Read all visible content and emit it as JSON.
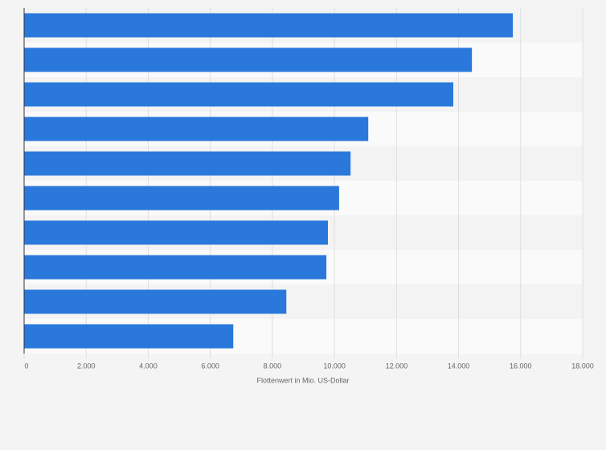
{
  "chart_data": {
    "type": "bar",
    "orientation": "horizontal",
    "x_label": "Flottenwert in Mio. US-Dollar",
    "categories": [
      null,
      null,
      null,
      null,
      null,
      null,
      null,
      null,
      null,
      null
    ],
    "values": [
      15750,
      14430,
      13830,
      11090,
      10520,
      10150,
      9790,
      9740,
      8450,
      6740
    ],
    "color": "#2a78dc",
    "xlim": [
      0,
      18000
    ],
    "xticks": [
      0,
      {
        "value": 2000,
        "label": "2.000"
      },
      {
        "value": 4000,
        "label": "4.000"
      },
      {
        "value": 6000,
        "label": "6.000"
      },
      {
        "value": 8000,
        "label": "8.000"
      },
      {
        "value": 10000,
        "label": "10.000"
      },
      {
        "value": 12000,
        "label": "12.000"
      },
      {
        "value": 14000,
        "label": "14.000"
      },
      {
        "value": 16000,
        "label": "16.000"
      },
      {
        "value": 18000,
        "label": "18.000"
      }
    ],
    "grid": true
  }
}
